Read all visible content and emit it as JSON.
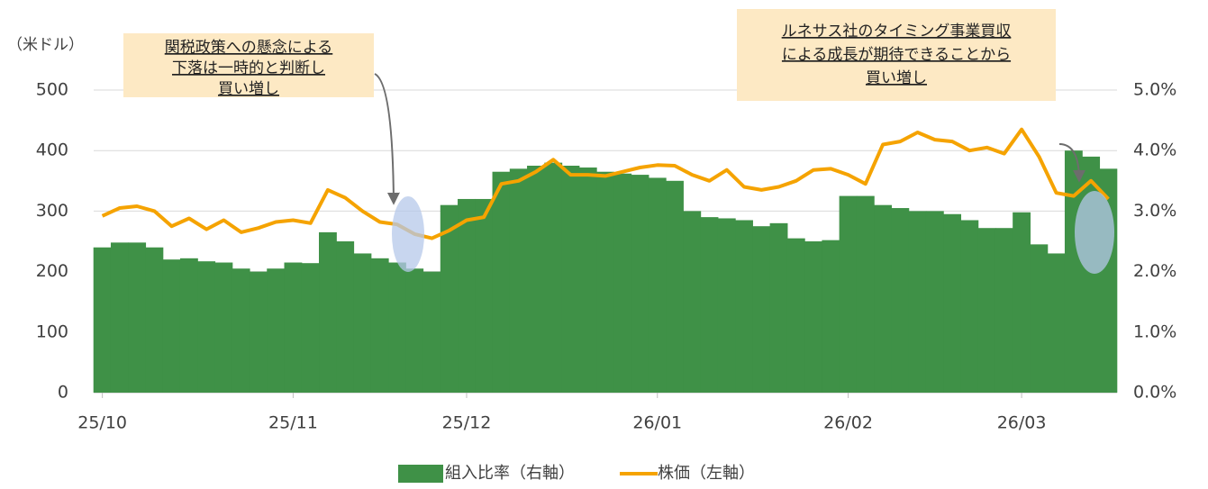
{
  "chart_data": {
    "type": "bar_line",
    "y_unit_label": "（米ドル）",
    "categories": [
      "25/10",
      null,
      null,
      null,
      null,
      null,
      null,
      null,
      null,
      null,
      null,
      "25/11",
      null,
      null,
      null,
      null,
      null,
      null,
      null,
      null,
      null,
      "25/12",
      null,
      null,
      null,
      null,
      null,
      null,
      null,
      null,
      null,
      null,
      "26/01",
      null,
      null,
      null,
      null,
      null,
      null,
      null,
      null,
      null,
      null,
      "26/02",
      null,
      null,
      null,
      null,
      null,
      null,
      null,
      null,
      null,
      "26/03",
      null,
      null,
      null,
      null,
      null
    ],
    "series": [
      {
        "name": "組入比率（右軸）",
        "type": "bar",
        "axis": "y2",
        "color": "#3f9147",
        "values": [
          2.4,
          2.48,
          2.48,
          2.4,
          2.2,
          2.22,
          2.17,
          2.15,
          2.05,
          2.0,
          2.05,
          2.15,
          2.14,
          2.65,
          2.5,
          2.3,
          2.22,
          2.15,
          2.05,
          2.0,
          3.1,
          3.2,
          3.2,
          3.65,
          3.7,
          3.75,
          3.8,
          3.75,
          3.72,
          3.65,
          3.62,
          3.6,
          3.55,
          3.5,
          3.0,
          2.9,
          2.88,
          2.85,
          2.75,
          2.8,
          2.55,
          2.5,
          2.52,
          3.25,
          3.25,
          3.1,
          3.05,
          3.0,
          3.0,
          2.95,
          2.85,
          2.72,
          2.72,
          2.98,
          2.45,
          2.3,
          4.0,
          3.9,
          3.7
        ]
      },
      {
        "name": "株価（左軸）",
        "type": "line",
        "axis": "y",
        "color": "#f5a300",
        "values": [
          292,
          305,
          308,
          300,
          275,
          288,
          270,
          285,
          265,
          272,
          282,
          285,
          280,
          335,
          322,
          300,
          282,
          278,
          262,
          255,
          268,
          285,
          290,
          345,
          350,
          365,
          385,
          360,
          360,
          358,
          365,
          372,
          376,
          375,
          360,
          350,
          368,
          340,
          335,
          340,
          350,
          368,
          370,
          360,
          345,
          410,
          415,
          430,
          418,
          415,
          400,
          405,
          395,
          435,
          390,
          330,
          325,
          350,
          320
        ]
      }
    ],
    "ylim": [
      0,
      500
    ],
    "yticks": [
      0,
      100,
      200,
      300,
      400,
      500
    ],
    "y2lim": [
      0,
      5
    ],
    "y2ticks": [
      {
        "value": 0,
        "label": "0.0%"
      },
      {
        "value": 1,
        "label": "1.0%"
      },
      {
        "value": 2,
        "label": "2.0%"
      },
      {
        "value": 3,
        "label": "3.0%"
      },
      {
        "value": 4,
        "label": "4.0%"
      },
      {
        "value": 5,
        "label": "5.0%"
      }
    ],
    "grid": true,
    "legend": "bottom",
    "annotations": [
      {
        "lines": [
          "関税政策への懸念による",
          "下落は一時的と判断し",
          "買い増し"
        ]
      },
      {
        "lines": [
          "ルネサス社のタイミング事業買収",
          "による成長が期待できることから",
          "買い増し"
        ]
      }
    ]
  }
}
